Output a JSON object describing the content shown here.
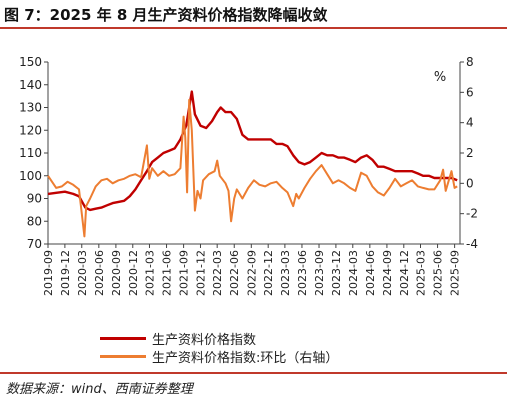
{
  "figure_title": "图 7：2025 年 8 月生产资料价格指数降幅收敛",
  "source_note": "数据来源：wind、西南证券整理",
  "colors": {
    "series_main": "#c00000",
    "series_mom": "#ed7d31",
    "rule": "#c0392b"
  },
  "chart_data": {
    "type": "line",
    "title": "",
    "left_axis": {
      "label": "",
      "ylim": [
        70,
        150
      ],
      "ticks": [
        70,
        80,
        90,
        100,
        110,
        120,
        130,
        140,
        150
      ]
    },
    "right_axis": {
      "label": "%",
      "ylim": [
        -4,
        8
      ],
      "ticks": [
        -4,
        -2,
        0,
        2,
        4,
        6,
        8
      ]
    },
    "x_ticks": [
      "2019-09",
      "2019-12",
      "2020-03",
      "2020-06",
      "2020-09",
      "2020-12",
      "2021-03",
      "2021-06",
      "2021-09",
      "2021-12",
      "2022-03",
      "2022-06",
      "2022-09",
      "2022-12",
      "2023-03",
      "2023-06",
      "2023-09",
      "2023-12",
      "2024-03",
      "2024-06",
      "2024-09",
      "2024-12",
      "2025-03",
      "2025-06",
      "2025-09"
    ],
    "x_range": [
      "2019-09-01",
      "2025-09-30"
    ],
    "legend_position": "bottom",
    "series": [
      {
        "name": "生产资料价格指数",
        "axis": "left",
        "points": [
          [
            "2019-09-01",
            92
          ],
          [
            "2019-10-15",
            92.5
          ],
          [
            "2019-12-01",
            93
          ],
          [
            "2020-01-15",
            92
          ],
          [
            "2020-02-15",
            91
          ],
          [
            "2020-03-20",
            86
          ],
          [
            "2020-04-15",
            85
          ],
          [
            "2020-05-15",
            85.5
          ],
          [
            "2020-06-15",
            86
          ],
          [
            "2020-07-15",
            87
          ],
          [
            "2020-08-15",
            88
          ],
          [
            "2020-09-15",
            88.5
          ],
          [
            "2020-10-15",
            89
          ],
          [
            "2020-11-15",
            91
          ],
          [
            "2020-12-15",
            94
          ],
          [
            "2021-01-15",
            98
          ],
          [
            "2021-02-15",
            102
          ],
          [
            "2021-03-15",
            106
          ],
          [
            "2021-04-15",
            108
          ],
          [
            "2021-05-15",
            110
          ],
          [
            "2021-06-15",
            111
          ],
          [
            "2021-07-15",
            112
          ],
          [
            "2021-08-15",
            116
          ],
          [
            "2021-09-15",
            122
          ],
          [
            "2021-10-15",
            137
          ],
          [
            "2021-11-01",
            127
          ],
          [
            "2021-12-01",
            122
          ],
          [
            "2022-01-01",
            121
          ],
          [
            "2022-02-01",
            124
          ],
          [
            "2022-03-01",
            128
          ],
          [
            "2022-03-20",
            130
          ],
          [
            "2022-04-15",
            128
          ],
          [
            "2022-05-15",
            128
          ],
          [
            "2022-06-15",
            125
          ],
          [
            "2022-07-15",
            118
          ],
          [
            "2022-08-15",
            116
          ],
          [
            "2022-09-15",
            116
          ],
          [
            "2022-10-15",
            116
          ],
          [
            "2022-11-15",
            116
          ],
          [
            "2022-12-15",
            116
          ],
          [
            "2023-01-15",
            114
          ],
          [
            "2023-02-15",
            114
          ],
          [
            "2023-03-15",
            113
          ],
          [
            "2023-04-15",
            109
          ],
          [
            "2023-05-15",
            106
          ],
          [
            "2023-06-15",
            105
          ],
          [
            "2023-07-15",
            106
          ],
          [
            "2023-08-15",
            108
          ],
          [
            "2023-09-15",
            110
          ],
          [
            "2023-10-15",
            109
          ],
          [
            "2023-11-15",
            109
          ],
          [
            "2023-12-15",
            108
          ],
          [
            "2024-01-15",
            108
          ],
          [
            "2024-02-15",
            107
          ],
          [
            "2024-03-15",
            106
          ],
          [
            "2024-04-15",
            108
          ],
          [
            "2024-05-15",
            109
          ],
          [
            "2024-06-15",
            107
          ],
          [
            "2024-07-15",
            104
          ],
          [
            "2024-08-15",
            104
          ],
          [
            "2024-09-15",
            103
          ],
          [
            "2024-10-15",
            102
          ],
          [
            "2024-11-15",
            102
          ],
          [
            "2024-12-15",
            102
          ],
          [
            "2025-01-15",
            102
          ],
          [
            "2025-02-15",
            101
          ],
          [
            "2025-03-15",
            100
          ],
          [
            "2025-04-15",
            100
          ],
          [
            "2025-05-15",
            99
          ],
          [
            "2025-06-15",
            99
          ],
          [
            "2025-07-15",
            99
          ],
          [
            "2025-08-15",
            99
          ],
          [
            "2025-09-15",
            98
          ]
        ]
      },
      {
        "name": "生产资料价格指数:环比（右轴）",
        "axis": "right",
        "points": [
          [
            "2019-09-01",
            0.5
          ],
          [
            "2019-10-15",
            -0.3
          ],
          [
            "2019-11-15",
            -0.2
          ],
          [
            "2019-12-15",
            0.1
          ],
          [
            "2020-01-15",
            -0.1
          ],
          [
            "2020-02-15",
            -0.4
          ],
          [
            "2020-03-15",
            -3.5
          ],
          [
            "2020-03-25",
            -1.5
          ],
          [
            "2020-04-15",
            -1.0
          ],
          [
            "2020-05-15",
            -0.2
          ],
          [
            "2020-06-15",
            0.2
          ],
          [
            "2020-07-15",
            0.3
          ],
          [
            "2020-08-15",
            0.0
          ],
          [
            "2020-09-15",
            0.2
          ],
          [
            "2020-10-15",
            0.3
          ],
          [
            "2020-11-15",
            0.5
          ],
          [
            "2020-12-15",
            0.6
          ],
          [
            "2021-01-15",
            0.4
          ],
          [
            "2021-02-15",
            2.5
          ],
          [
            "2021-02-28",
            0.3
          ],
          [
            "2021-03-15",
            1.0
          ],
          [
            "2021-04-15",
            0.5
          ],
          [
            "2021-05-15",
            0.8
          ],
          [
            "2021-06-15",
            0.5
          ],
          [
            "2021-07-15",
            0.6
          ],
          [
            "2021-08-15",
            1.0
          ],
          [
            "2021-09-01",
            4.4
          ],
          [
            "2021-09-10",
            3.0
          ],
          [
            "2021-09-20",
            -0.6
          ],
          [
            "2021-10-01",
            5.5
          ],
          [
            "2021-10-15",
            3.5
          ],
          [
            "2021-11-01",
            -1.8
          ],
          [
            "2021-11-15",
            -0.5
          ],
          [
            "2021-12-01",
            -1.0
          ],
          [
            "2021-12-15",
            0.2
          ],
          [
            "2022-01-15",
            0.6
          ],
          [
            "2022-02-15",
            0.8
          ],
          [
            "2022-03-01",
            1.5
          ],
          [
            "2022-03-15",
            0.5
          ],
          [
            "2022-04-15",
            0.0
          ],
          [
            "2022-05-01",
            -0.5
          ],
          [
            "2022-05-15",
            -2.5
          ],
          [
            "2022-06-01",
            -1.0
          ],
          [
            "2022-06-15",
            -0.4
          ],
          [
            "2022-07-15",
            -1.0
          ],
          [
            "2022-08-15",
            -0.3
          ],
          [
            "2022-09-15",
            0.2
          ],
          [
            "2022-10-15",
            -0.1
          ],
          [
            "2022-11-15",
            -0.2
          ],
          [
            "2022-12-15",
            0.0
          ],
          [
            "2023-01-15",
            0.1
          ],
          [
            "2023-02-15",
            -0.3
          ],
          [
            "2023-03-15",
            -0.6
          ],
          [
            "2023-04-15",
            -1.5
          ],
          [
            "2023-05-01",
            -0.7
          ],
          [
            "2023-05-15",
            -1.0
          ],
          [
            "2023-06-15",
            -0.3
          ],
          [
            "2023-07-15",
            0.3
          ],
          [
            "2023-08-15",
            0.8
          ],
          [
            "2023-09-15",
            1.2
          ],
          [
            "2023-10-15",
            0.6
          ],
          [
            "2023-11-15",
            0.0
          ],
          [
            "2023-12-15",
            0.2
          ],
          [
            "2024-01-15",
            0.0
          ],
          [
            "2024-02-15",
            -0.3
          ],
          [
            "2024-03-15",
            -0.5
          ],
          [
            "2024-04-15",
            0.7
          ],
          [
            "2024-05-15",
            0.5
          ],
          [
            "2024-06-15",
            -0.2
          ],
          [
            "2024-07-15",
            -0.6
          ],
          [
            "2024-08-15",
            -0.8
          ],
          [
            "2024-09-15",
            -0.3
          ],
          [
            "2024-10-15",
            0.3
          ],
          [
            "2024-11-15",
            -0.2
          ],
          [
            "2024-12-15",
            0.0
          ],
          [
            "2025-01-15",
            0.2
          ],
          [
            "2025-02-15",
            -0.2
          ],
          [
            "2025-03-15",
            -0.3
          ],
          [
            "2025-04-15",
            -0.4
          ],
          [
            "2025-05-15",
            -0.4
          ],
          [
            "2025-06-15",
            0.2
          ],
          [
            "2025-07-01",
            0.9
          ],
          [
            "2025-07-15",
            -0.5
          ],
          [
            "2025-08-15",
            0.8
          ],
          [
            "2025-09-01",
            -0.3
          ],
          [
            "2025-09-15",
            -0.2
          ]
        ]
      }
    ]
  }
}
